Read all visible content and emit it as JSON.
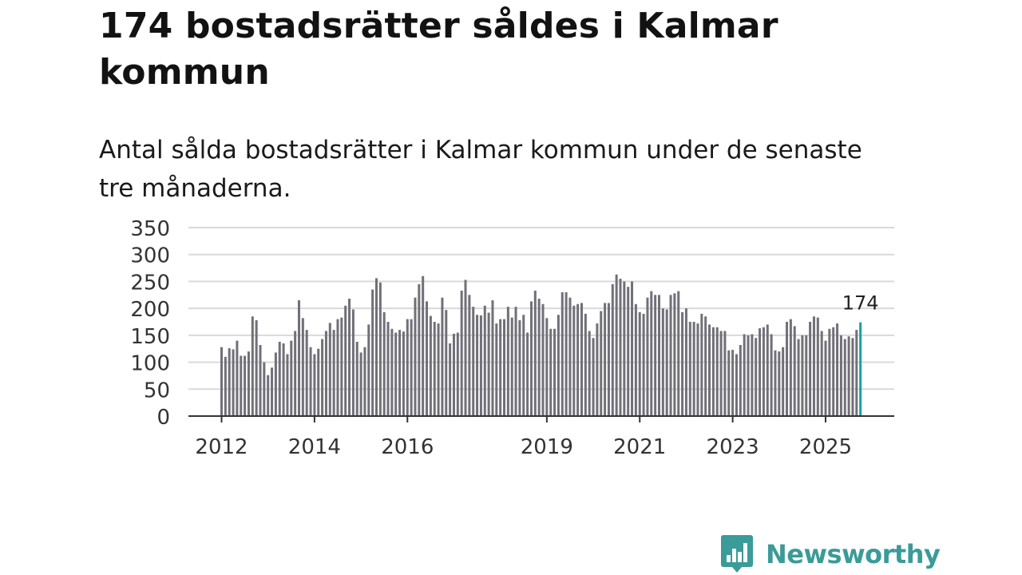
{
  "header": {
    "title": "174 bostadsrätter såldes i Kalmar kommun",
    "subtitle": "Antal sålda bostadsrätter i Kalmar kommun under de senaste tre månaderna."
  },
  "brand": {
    "name": "Newsworthy",
    "color": "#3a9b98"
  },
  "colors": {
    "bar": "#717078",
    "highlight": "#14a3a0",
    "grid": "#d9d9d9",
    "axis": "#333333"
  },
  "chart_data": {
    "type": "bar",
    "title": "",
    "xlabel": "",
    "ylabel": "",
    "ylim": [
      0,
      350
    ],
    "yticks": [
      "0",
      "50",
      "100",
      "150",
      "200",
      "250",
      "300",
      "350"
    ],
    "ytick_values": [
      0,
      50,
      100,
      150,
      200,
      250,
      300,
      350
    ],
    "xticks": [
      {
        "label": "2012",
        "index": 0
      },
      {
        "label": "2014",
        "index": 24
      },
      {
        "label": "2016",
        "index": 48
      },
      {
        "label": "2019",
        "index": 84
      },
      {
        "label": "2021",
        "index": 108
      },
      {
        "label": "2023",
        "index": 132
      },
      {
        "label": "2025",
        "index": 156
      }
    ],
    "grid": true,
    "highlight_label": "174",
    "values": [
      128,
      110,
      126,
      124,
      140,
      112,
      112,
      120,
      185,
      178,
      132,
      100,
      76,
      90,
      118,
      138,
      135,
      115,
      140,
      158,
      215,
      182,
      160,
      128,
      115,
      125,
      143,
      158,
      173,
      160,
      180,
      183,
      205,
      218,
      198,
      138,
      118,
      128,
      170,
      235,
      256,
      248,
      193,
      175,
      162,
      155,
      160,
      157,
      180,
      180,
      220,
      245,
      260,
      213,
      186,
      175,
      172,
      220,
      197,
      135,
      153,
      155,
      233,
      253,
      225,
      203,
      188,
      187,
      205,
      192,
      215,
      172,
      180,
      180,
      203,
      183,
      203,
      178,
      188,
      155,
      213,
      233,
      218,
      208,
      182,
      162,
      162,
      188,
      230,
      230,
      220,
      205,
      208,
      210,
      190,
      158,
      145,
      172,
      195,
      210,
      210,
      245,
      263,
      255,
      250,
      240,
      250,
      208,
      193,
      190,
      220,
      232,
      225,
      225,
      200,
      198,
      225,
      228,
      232,
      193,
      200,
      175,
      175,
      172,
      190,
      185,
      170,
      165,
      165,
      158,
      158,
      122,
      123,
      115,
      132,
      152,
      150,
      152,
      145,
      163,
      165,
      170,
      152,
      122,
      120,
      128,
      175,
      180,
      167,
      143,
      150,
      150,
      175,
      185,
      183,
      158,
      140,
      162,
      165,
      172,
      150,
      143,
      148,
      145,
      160,
      174
    ]
  }
}
